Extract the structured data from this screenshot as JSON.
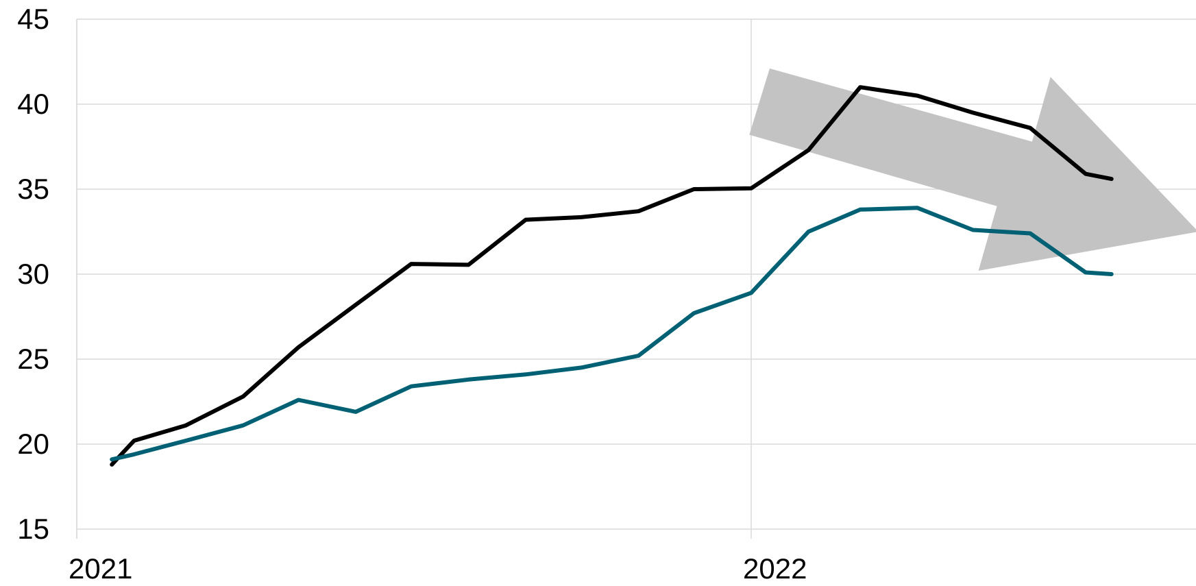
{
  "colors": {
    "background": "#ffffff",
    "grid": "#d9d9d9",
    "axis": "#d9d9d9",
    "text": "#000000",
    "arrow": "#c3c3c4"
  },
  "chart_data": {
    "type": "line",
    "title": "",
    "xlabel": "",
    "ylabel": "",
    "ylim": [
      15,
      45
    ],
    "yticks": [
      15,
      20,
      25,
      30,
      35,
      40,
      45
    ],
    "xticks": [
      {
        "label": "2021",
        "value": "2021-01"
      },
      {
        "label": "2022",
        "value": "2022-01"
      }
    ],
    "x_first": "2021-01-20",
    "x_last": "2022-07-15",
    "grid": true,
    "legend": "none",
    "series": [
      {
        "color": "#000000",
        "x": [
          "2021-01-20",
          "2021-02",
          "2021-03",
          "2021-04",
          "2021-05",
          "2021-06",
          "2021-07",
          "2021-08",
          "2021-09",
          "2021-10",
          "2021-11",
          "2021-12",
          "2022-01",
          "2022-02",
          "2022-03",
          "2022-04",
          "2022-05",
          "2022-06",
          "2022-07",
          "2022-07-15"
        ],
        "values": [
          18.8,
          20.2,
          21.1,
          22.8,
          25.7,
          28.2,
          30.6,
          30.55,
          33.2,
          33.35,
          33.7,
          35.0,
          35.05,
          37.3,
          41.0,
          40.5,
          39.5,
          38.6,
          35.9,
          35.6
        ]
      },
      {
        "color": "#006175",
        "x": [
          "2021-01-20",
          "2021-02",
          "2021-03",
          "2021-04",
          "2021-05",
          "2021-06",
          "2021-07",
          "2021-08",
          "2021-09",
          "2021-10",
          "2021-11",
          "2021-12",
          "2022-01",
          "2022-02",
          "2022-03",
          "2022-04",
          "2022-05",
          "2022-06",
          "2022-07",
          "2022-07-15"
        ],
        "values": [
          19.1,
          19.4,
          20.2,
          21.1,
          22.6,
          21.9,
          23.4,
          23.8,
          24.1,
          24.5,
          25.2,
          27.7,
          28.9,
          32.5,
          33.8,
          33.9,
          32.6,
          32.4,
          30.1,
          30.0
        ]
      }
    ],
    "annotations": [
      {
        "type": "arrow",
        "color": "#c3c3c4",
        "points": [
          [
            "2021-12-31",
            38.2
          ],
          [
            "2022-01-11",
            42.1
          ],
          [
            "2022-06-02",
            37.8
          ],
          [
            "2022-06-12",
            41.6
          ],
          [
            "2022-08-31",
            32.5
          ],
          [
            "2022-05-04",
            30.2
          ],
          [
            "2022-05-14",
            34.0
          ]
        ]
      }
    ]
  }
}
